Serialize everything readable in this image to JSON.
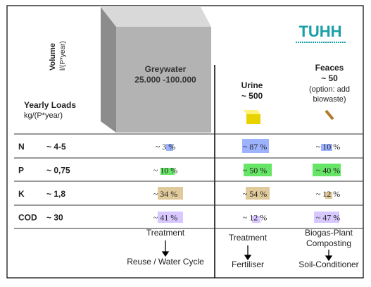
{
  "header": {
    "volume_label": "Volume",
    "volume_unit": "l/(P*year)",
    "loads_label": "Yearly Loads",
    "loads_unit": "kg/(P*year)",
    "logo": "TUHH"
  },
  "columns": [
    {
      "name": "Greywater",
      "volume": "25.000 -100.000"
    },
    {
      "name": "Urine",
      "volume": "~ 500"
    },
    {
      "name": "Feaces",
      "volume": "~ 50",
      "note": "(option: add",
      "note2": "biowaste)"
    }
  ],
  "rows": [
    {
      "parameter": "N",
      "load": "~ 4-5",
      "cells": [
        "~ 3 %",
        "~ 87 %",
        "~ 10 %"
      ]
    },
    {
      "parameter": "P",
      "load": "~ 0,75",
      "cells": [
        "~ 10 %",
        "~ 50 %",
        "~ 40 %"
      ]
    },
    {
      "parameter": "K",
      "load": "~ 1,8",
      "cells": [
        "~ 34 %",
        "~ 54 %",
        "~ 12 %"
      ]
    },
    {
      "parameter": "COD",
      "load": "~ 30",
      "cells": [
        "~ 41 %",
        "~ 12 %",
        "~ 47 %"
      ]
    }
  ],
  "footer": [
    {
      "step": "Treatment",
      "result": "Reuse / Water Cycle"
    },
    {
      "step": "Treatment",
      "result": "Fertiliser"
    },
    {
      "step": "Biogas-Plant",
      "step2": "Composting",
      "result": "Soil-Conditioner"
    }
  ]
}
